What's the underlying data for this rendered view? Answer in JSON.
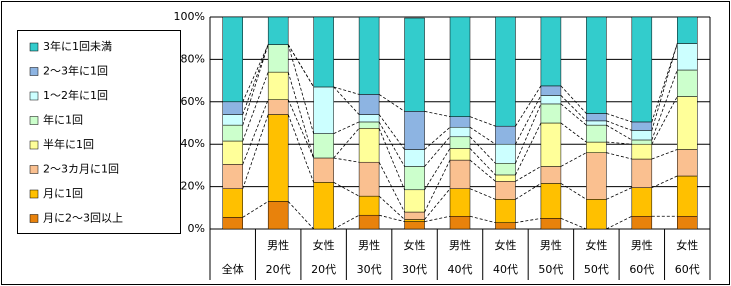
{
  "chart_data": {
    "type": "bar",
    "stacked": true,
    "categories": [
      "全体",
      "20代",
      "20代",
      "30代",
      "30代",
      "40代",
      "40代",
      "50代",
      "50代",
      "60代",
      "60代"
    ],
    "groups": [
      null,
      "男性",
      "女性",
      "男性",
      "女性",
      "男性",
      "女性",
      "男性",
      "女性",
      "男性",
      "女性"
    ],
    "series": [
      {
        "name": "月に2〜3回以上",
        "color": "#E8820C",
        "values": [
          5.5,
          13,
          0,
          6.5,
          3.5,
          6,
          3,
          5,
          0,
          6,
          6
        ]
      },
      {
        "name": "月に1回",
        "color": "#FFC000",
        "values": [
          13.5,
          41,
          22,
          9,
          1,
          13,
          11,
          16.5,
          14,
          13.5,
          19
        ]
      },
      {
        "name": "2〜3カ月に1回",
        "color": "#FAC090",
        "values": [
          11.5,
          7,
          11.5,
          16,
          3.5,
          13.5,
          8.5,
          8,
          22,
          13.5,
          12.5
        ]
      },
      {
        "name": "半年に1回",
        "color": "#FFFF99",
        "values": [
          11,
          13,
          0,
          16,
          10.5,
          5.5,
          3,
          20.5,
          5,
          7,
          25
        ]
      },
      {
        "name": "年に1回",
        "color": "#CCFFCC",
        "values": [
          7.5,
          13,
          11.5,
          3,
          11,
          5.5,
          5.5,
          9,
          8,
          2,
          12.5
        ]
      },
      {
        "name": "1〜2年に1回",
        "color": "#CCFFFF",
        "values": [
          5,
          0,
          22,
          3.5,
          8,
          4.5,
          9,
          4,
          2,
          4.5,
          12.5
        ]
      },
      {
        "name": "2〜3年に1回",
        "color": "#8DB4E2",
        "values": [
          6,
          0,
          0,
          9.5,
          18,
          5,
          8.5,
          4.5,
          3.5,
          4,
          0
        ]
      },
      {
        "name": "3年に1回未満",
        "color": "#33CCCC",
        "values": [
          40,
          13,
          33,
          36.5,
          44,
          47,
          51.5,
          32.5,
          45.5,
          49.5,
          12.5
        ]
      }
    ],
    "ylim": [
      0,
      100
    ],
    "yticks": [
      {
        "value": 0,
        "label": "0%"
      },
      {
        "value": 20,
        "label": "20%"
      },
      {
        "value": 40,
        "label": "40%"
      },
      {
        "value": 60,
        "label": "60%"
      },
      {
        "value": 80,
        "label": "80%"
      },
      {
        "value": 100,
        "label": "100%"
      }
    ],
    "grid": true
  }
}
